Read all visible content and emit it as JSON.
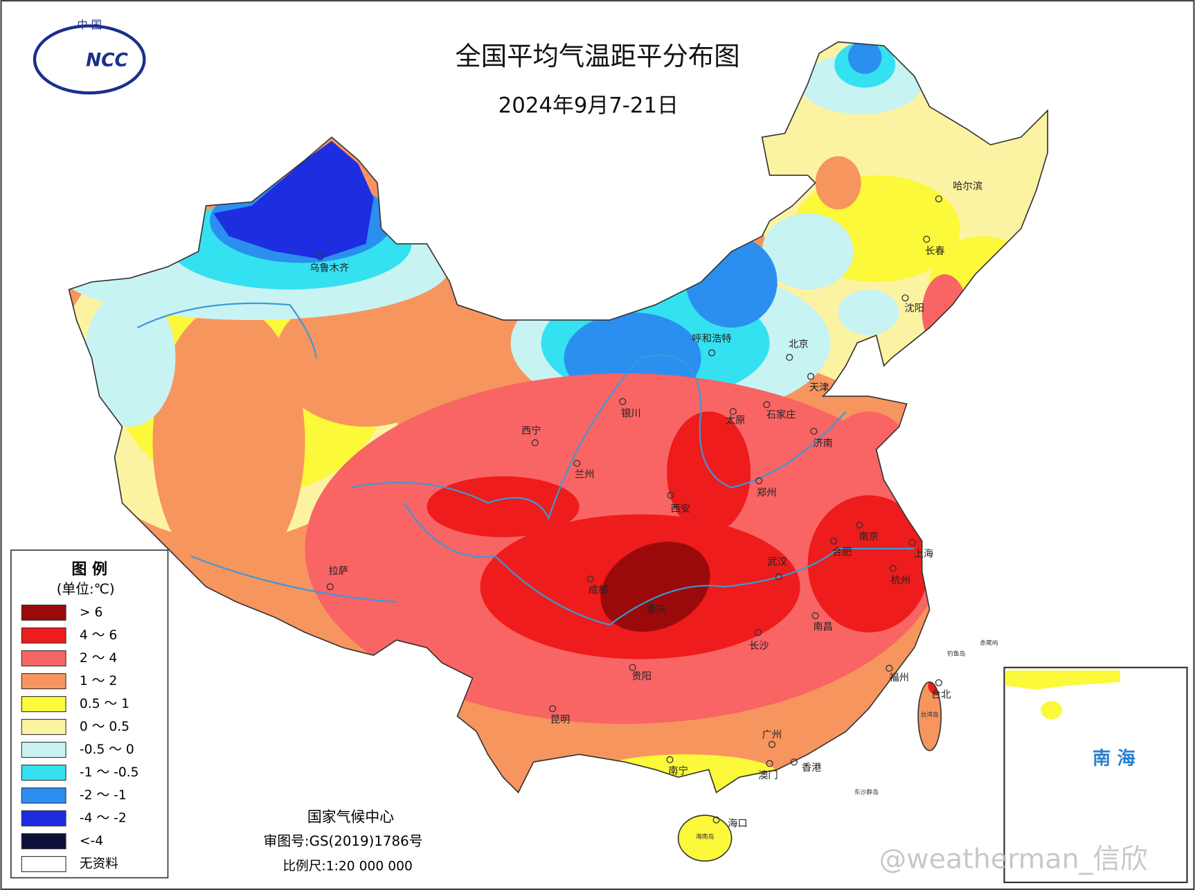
{
  "header": {
    "title": "全国平均气温距平分布图",
    "subtitle": "2024年9月7-21日"
  },
  "logo": {
    "top": "中 国",
    "mark": "NCC"
  },
  "legend": {
    "title": "图 例",
    "unit": "(单位:℃)",
    "items": [
      {
        "label": "> 6",
        "color": "#9b0a0a"
      },
      {
        "label": "4 ～ 6",
        "color": "#ee1c1c"
      },
      {
        "label": "2 ～ 4",
        "color": "#f96464"
      },
      {
        "label": "1 ～ 2",
        "color": "#f7955e"
      },
      {
        "label": "0.5 ～ 1",
        "color": "#fcf83a"
      },
      {
        "label": "0 ～ 0.5",
        "color": "#fcf3a2"
      },
      {
        "label": "-0.5 ～ 0",
        "color": "#c8f3f3"
      },
      {
        "label": "-1 ～ -0.5",
        "color": "#34e1f1"
      },
      {
        "label": "-2 ～ -1",
        "color": "#2b8ff0"
      },
      {
        "label": "-4 ～ -2",
        "color": "#1c2ee0"
      },
      {
        "label": "<-4",
        "color": "#0e0e3a"
      },
      {
        "label": "无资料",
        "color": "#ffffff"
      }
    ]
  },
  "cities": [
    "乌鲁木齐",
    "呼和浩特",
    "北京",
    "天津",
    "银川",
    "太原",
    "石家庄",
    "济南",
    "西宁",
    "兰州",
    "郑州",
    "西安",
    "南京",
    "合肥",
    "上海",
    "武汉",
    "杭州",
    "成都",
    "重庆",
    "拉萨",
    "长沙",
    "南昌",
    "贵阳",
    "福州",
    "台北",
    "昆明",
    "广州",
    "南宁",
    "澳门",
    "香港",
    "海口",
    "哈尔滨",
    "长春",
    "沈阳"
  ],
  "places": [
    "台湾岛",
    "海南岛",
    "钓鱼岛",
    "赤尾屿",
    "东沙群岛"
  ],
  "footer": {
    "agency": "国家气候中心",
    "approval": "审图号:GS(2019)1786号",
    "scale": "比例尺:1:20 000 000"
  },
  "inset": {
    "label": "南 海"
  },
  "watermark": "@weatherman_信欣"
}
